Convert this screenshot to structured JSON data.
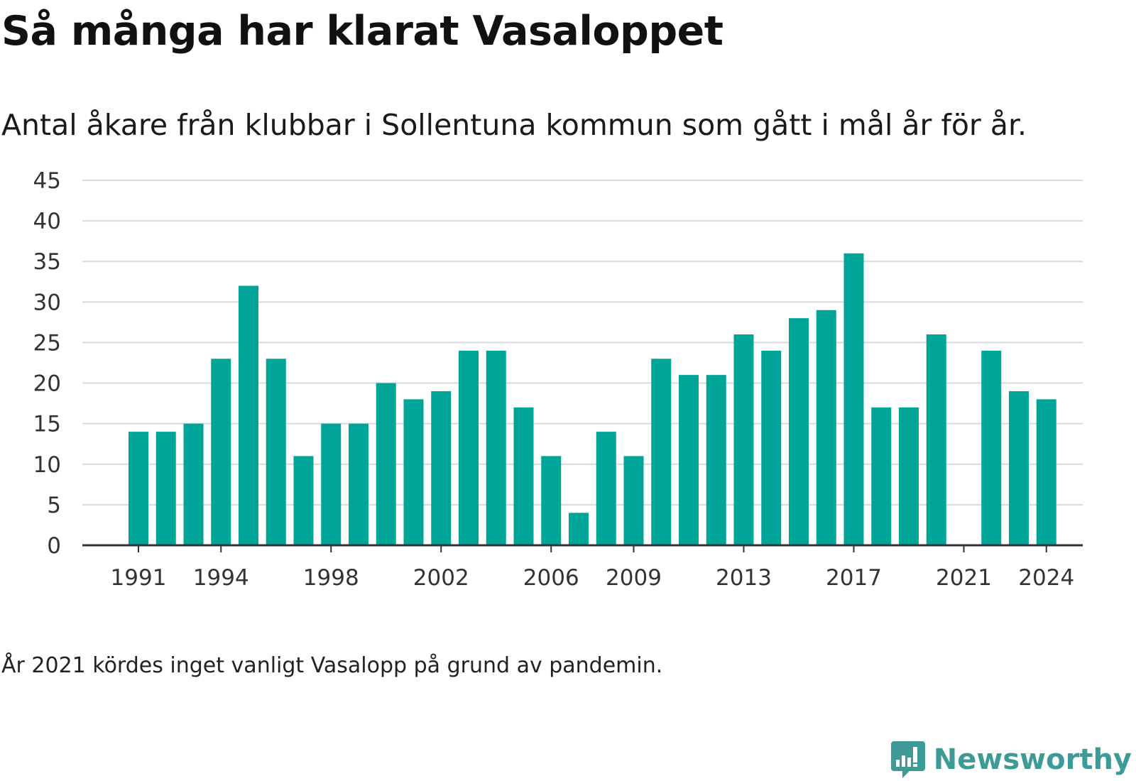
{
  "title": "Så många har klarat Vasaloppet",
  "subtitle": "Antal åkare från klubbar i Sollentuna kommun som gått i mål år för år.",
  "footnote": "År 2021 kördes inget vanligt Vasalopp på grund av pandemin.",
  "brand": {
    "name": "Newsworthy",
    "icon": "bar-chart-speech-bubble-icon"
  },
  "colors": {
    "bar": "#00a59a",
    "grid": "#d9d9d9",
    "axis": "#333333",
    "brand": "#3d9b97"
  },
  "chart_data": {
    "type": "bar",
    "title": "Så många har klarat Vasaloppet",
    "subtitle": "Antal åkare från klubbar i Sollentuna kommun som gått i mål år för år.",
    "xlabel": "",
    "ylabel": "",
    "ylim": [
      0,
      45
    ],
    "yticks": [
      0,
      5,
      10,
      15,
      20,
      25,
      30,
      35,
      40,
      45
    ],
    "xtick_labels": [
      "1991",
      "1994",
      "1998",
      "2002",
      "2006",
      "2009",
      "2013",
      "2017",
      "2021",
      "2024"
    ],
    "grid": true,
    "legend": "none",
    "categories": [
      "1991",
      "1992",
      "1993",
      "1994",
      "1995",
      "1996",
      "1997",
      "1998",
      "1999",
      "2000",
      "2001",
      "2002",
      "2003",
      "2004",
      "2005",
      "2006",
      "2007",
      "2008",
      "2009",
      "2010",
      "2011",
      "2012",
      "2013",
      "2014",
      "2015",
      "2016",
      "2017",
      "2018",
      "2019",
      "2020",
      "2021",
      "2022",
      "2023",
      "2024"
    ],
    "values": [
      14,
      14,
      15,
      23,
      32,
      23,
      11,
      15,
      15,
      20,
      18,
      19,
      24,
      24,
      17,
      11,
      4,
      14,
      11,
      23,
      21,
      21,
      26,
      24,
      28,
      29,
      36,
      17,
      17,
      26,
      null,
      24,
      19,
      18
    ]
  }
}
